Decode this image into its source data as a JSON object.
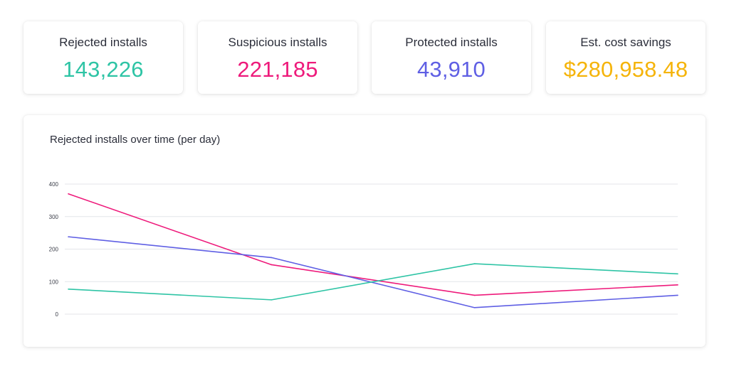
{
  "stats": [
    {
      "label": "Rejected installs",
      "value": "143,226",
      "color": "#2ec4a5"
    },
    {
      "label": "Suspicious installs",
      "value": "221,185",
      "color": "#ee1a7b"
    },
    {
      "label": "Protected installs",
      "value": "43,910",
      "color": "#5f5fe4"
    },
    {
      "label": "Est. cost savings",
      "value": "$280,958.48",
      "color": "#f5b40a"
    }
  ],
  "chart_data": {
    "type": "line",
    "title": "Rejected installs over time (per day)",
    "xlabel": "",
    "ylabel": "",
    "ylim": [
      0,
      400
    ],
    "yticks": [
      0,
      100,
      200,
      300,
      400
    ],
    "x": [
      0,
      1,
      2,
      3
    ],
    "grid": true,
    "series": [
      {
        "name": "Suspicious installs",
        "color": "#ee1a7b",
        "values": [
          370,
          152,
          58,
          90
        ]
      },
      {
        "name": "Protected installs",
        "color": "#5f5fe4",
        "values": [
          238,
          174,
          20,
          58
        ]
      },
      {
        "name": "Rejected installs",
        "color": "#2ec4a5",
        "values": [
          77,
          44,
          155,
          124
        ]
      }
    ]
  }
}
